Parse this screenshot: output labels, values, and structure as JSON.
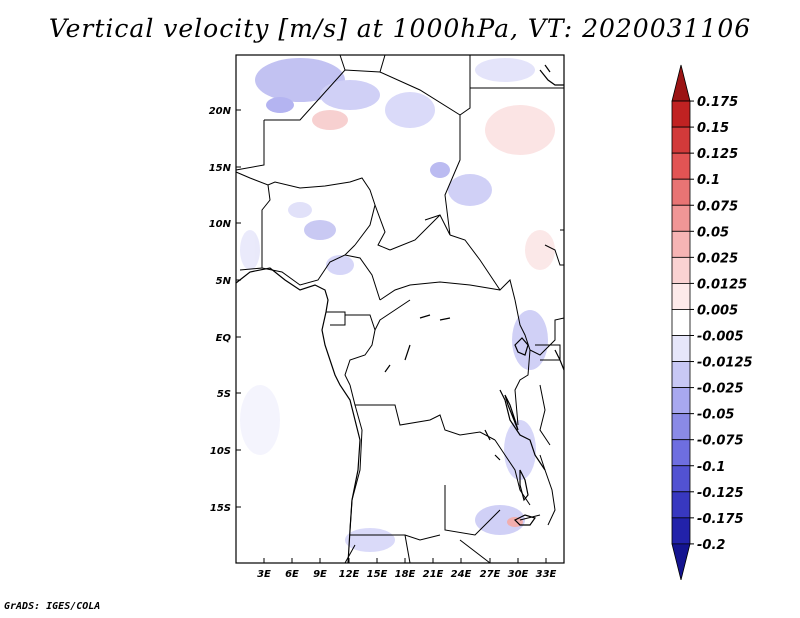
{
  "title": "Vertical velocity [m/s] at 1000hPa, VT: 2020031106",
  "footer": "GrADS: IGES/COLA",
  "map": {
    "lat_labels": [
      "20N",
      "15N",
      "10N",
      "5N",
      "EQ",
      "5S",
      "10S",
      "15S"
    ],
    "lon_labels": [
      "3E",
      "6E",
      "9E",
      "12E",
      "15E",
      "18E",
      "21E",
      "24E",
      "27E",
      "30E",
      "33E"
    ]
  },
  "colorbar": {
    "labels": [
      "0.175",
      "0.15",
      "0.125",
      "0.1",
      "0.075",
      "0.05",
      "0.025",
      "0.0125",
      "0.005",
      "-0.005",
      "-0.0125",
      "-0.025",
      "-0.05",
      "-0.075",
      "-0.1",
      "-0.125",
      "-0.175",
      "-0.2"
    ],
    "colors": [
      "#9b1414",
      "#c02222",
      "#d23a3a",
      "#e25454",
      "#e87474",
      "#f09696",
      "#f6b4b4",
      "#fad2d2",
      "#fdeaea",
      "#ffffff",
      "#e6e6fa",
      "#c8c8f5",
      "#a8a8ef",
      "#8a8ae6",
      "#6e6ee0",
      "#5252d2",
      "#3838c0",
      "#2222aa",
      "#141490"
    ]
  }
}
